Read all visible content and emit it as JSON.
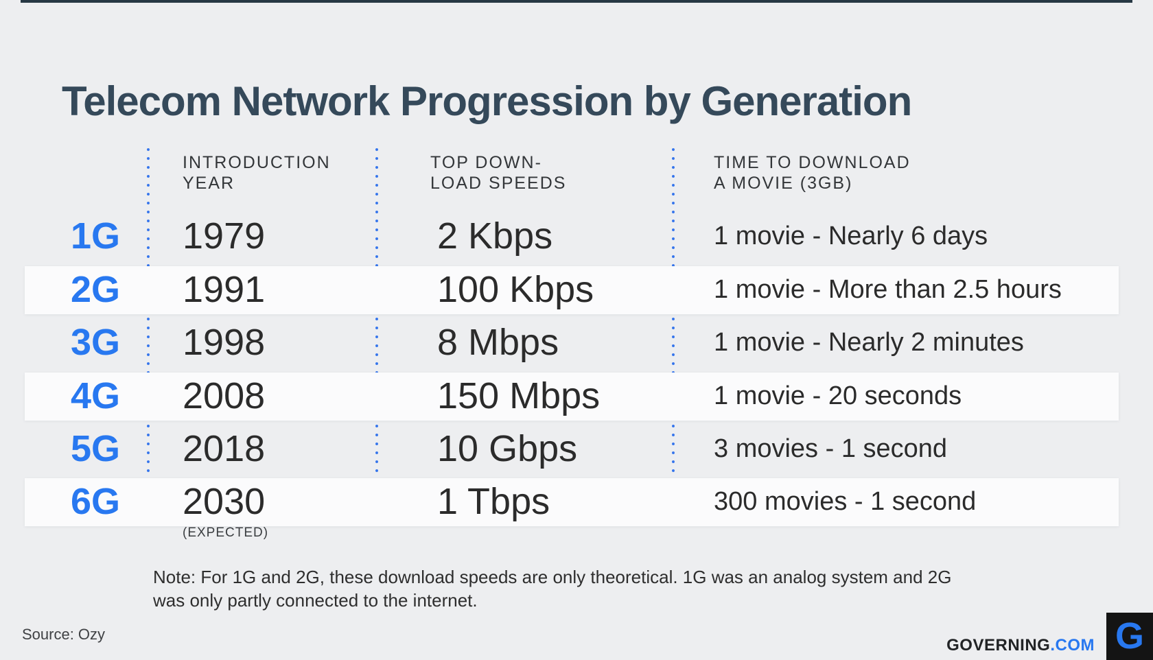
{
  "title": "Telecom Network Progression by Generation",
  "colors": {
    "background": "#edeef0",
    "accent_blue": "#2878f0",
    "dotted_line_blue": "#3474ec",
    "title_slate": "#35495a",
    "text_dark": "#2b2b2b",
    "row_highlight": "#fbfbfc",
    "top_bar": "#273844",
    "logo_square": "#141414"
  },
  "table": {
    "headers": [
      {
        "line1": "INTRODUCTION",
        "line2": "YEAR"
      },
      {
        "line1": "TOP DOWN-",
        "line2": "LOAD SPEEDS"
      },
      {
        "line1": "TIME TO DOWNLOAD",
        "line2": "A MOVIE (3GB)"
      }
    ],
    "rows": [
      {
        "gen": "1G",
        "year": "1979",
        "speed": "2 Kbps",
        "download_time": "1 movie - Nearly 6 days"
      },
      {
        "gen": "2G",
        "year": "1991",
        "speed": "100 Kbps",
        "download_time": "1 movie - More than 2.5 hours"
      },
      {
        "gen": "3G",
        "year": "1998",
        "speed": "8 Mbps",
        "download_time": "1 movie - Nearly 2 minutes"
      },
      {
        "gen": "4G",
        "year": "2008",
        "speed": "150 Mbps",
        "download_time": "1 movie - 20 seconds"
      },
      {
        "gen": "5G",
        "year": "2018",
        "speed": "10 Gbps",
        "download_time": "3 movies - 1 second"
      },
      {
        "gen": "6G",
        "year": "2030",
        "year_note": "(EXPECTED)",
        "speed": "1 Tbps",
        "download_time": "300 movies - 1 second"
      }
    ]
  },
  "note": {
    "line1": "Note: For 1G and 2G, these download speeds are only theoretical. 1G was an analog system and 2G",
    "line2": "was only partly connected to the internet."
  },
  "footer": {
    "source": "Source: Ozy",
    "brand_name": "GOVERNING",
    "brand_tld": ".COM",
    "logo_letter": "G"
  },
  "chart_data": {
    "type": "table",
    "title": "Telecom Network Progression by Generation",
    "columns": [
      "Generation",
      "Introduction Year",
      "Top Download Speeds",
      "Time to Download a Movie (3GB)"
    ],
    "rows": [
      [
        "1G",
        "1979",
        "2 Kbps",
        "1 movie - Nearly 6 days"
      ],
      [
        "2G",
        "1991",
        "100 Kbps",
        "1 movie - More than 2.5 hours"
      ],
      [
        "3G",
        "1998",
        "8 Mbps",
        "1 movie - Nearly 2 minutes"
      ],
      [
        "4G",
        "2008",
        "150 Mbps",
        "1 movie - 20 seconds"
      ],
      [
        "5G",
        "2018",
        "10 Gbps",
        "3 movies - 1 second"
      ],
      [
        "6G",
        "2030 (expected)",
        "1 Tbps",
        "300 movies - 1 second"
      ]
    ],
    "notes": [
      "Note: For 1G and 2G, these download speeds are only theoretical. 1G was an analog system and 2G was only partly connected to the internet.",
      "Source: Ozy"
    ],
    "layout": {
      "highlighted_rows": [
        "2G",
        "4G",
        "6G"
      ],
      "column_separators": "dotted-blue-vertical"
    }
  }
}
